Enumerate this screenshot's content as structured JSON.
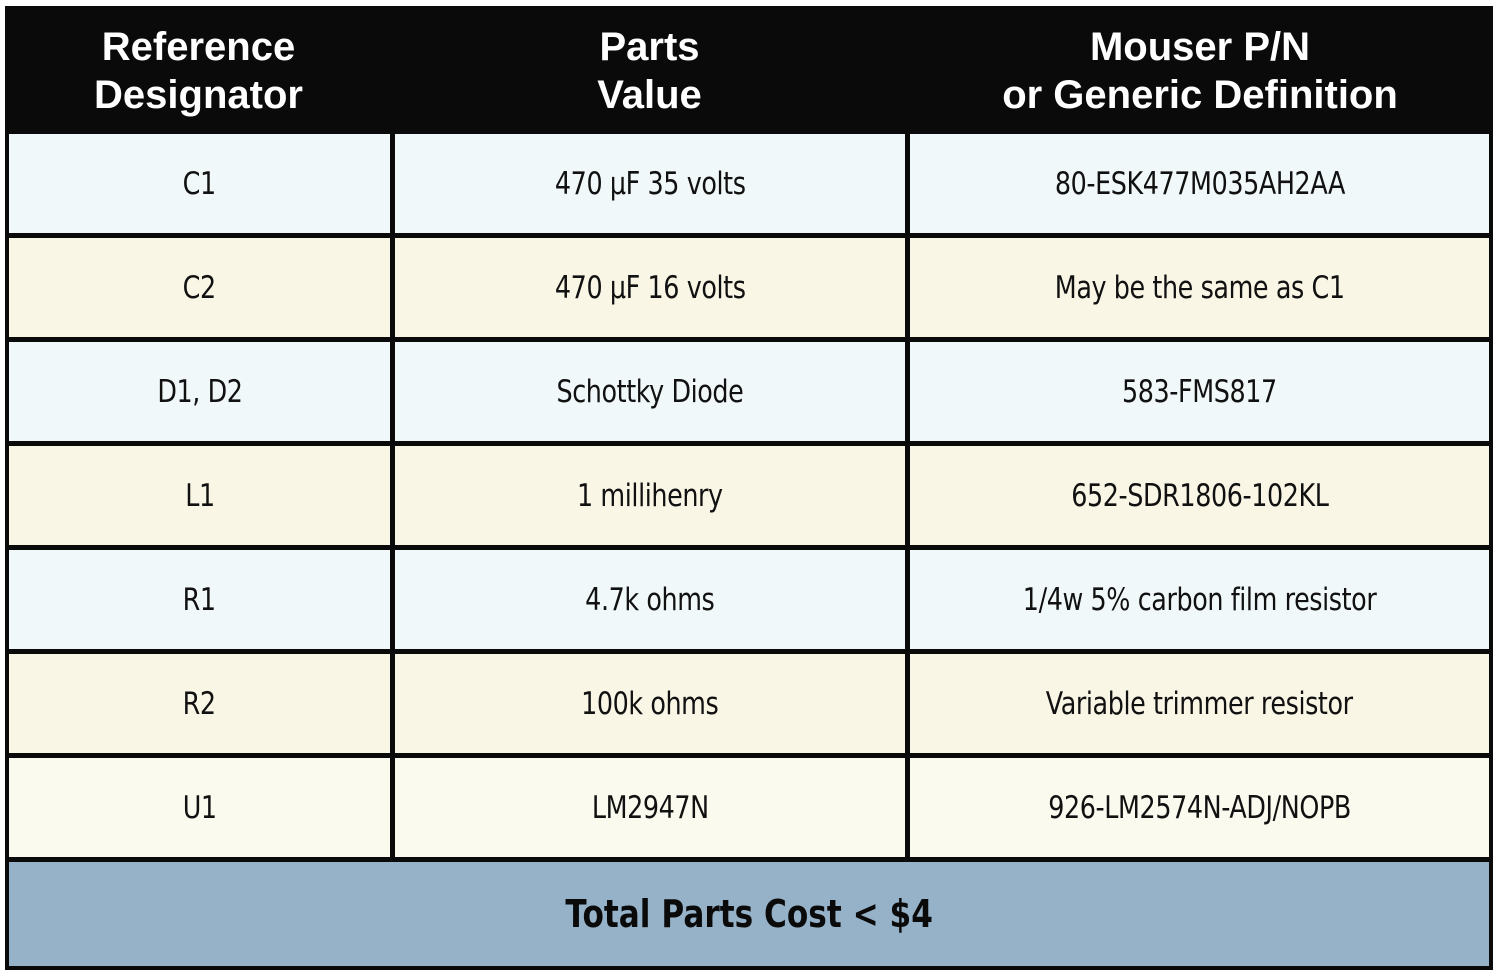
{
  "header": {
    "col1": [
      "Reference",
      "Designator"
    ],
    "col2": [
      "Parts",
      "Value"
    ],
    "col3": [
      "Mouser P/N",
      "or Generic Definition"
    ]
  },
  "rows": [
    {
      "ref": "C1",
      "value": "470 µF 35 volts",
      "part": "80-ESK477M035AH2AA"
    },
    {
      "ref": "C2",
      "value": "470 µF 16 volts",
      "part": "May be the same as C1"
    },
    {
      "ref": "D1, D2",
      "value": "Schottky Diode",
      "part": "583-FMS817"
    },
    {
      "ref": "L1",
      "value": "1 millihenry",
      "part": "652-SDR1806-102KL"
    },
    {
      "ref": "R1",
      "value": "4.7k ohms",
      "part": "1/4w 5% carbon film resistor"
    },
    {
      "ref": "R2",
      "value": "100k ohms",
      "part": "Variable trimmer resistor"
    },
    {
      "ref": "U1",
      "value": "LM2947N",
      "part": "926-LM2574N-ADJ/NOPB"
    }
  ],
  "footer": {
    "total": "Total Parts Cost < $4"
  },
  "colors": {
    "header_bg": "#0a0a0a",
    "row_odd": "#f1f8f9",
    "row_even": "#f9f6e6",
    "footer_bg": "#96b2c8"
  }
}
